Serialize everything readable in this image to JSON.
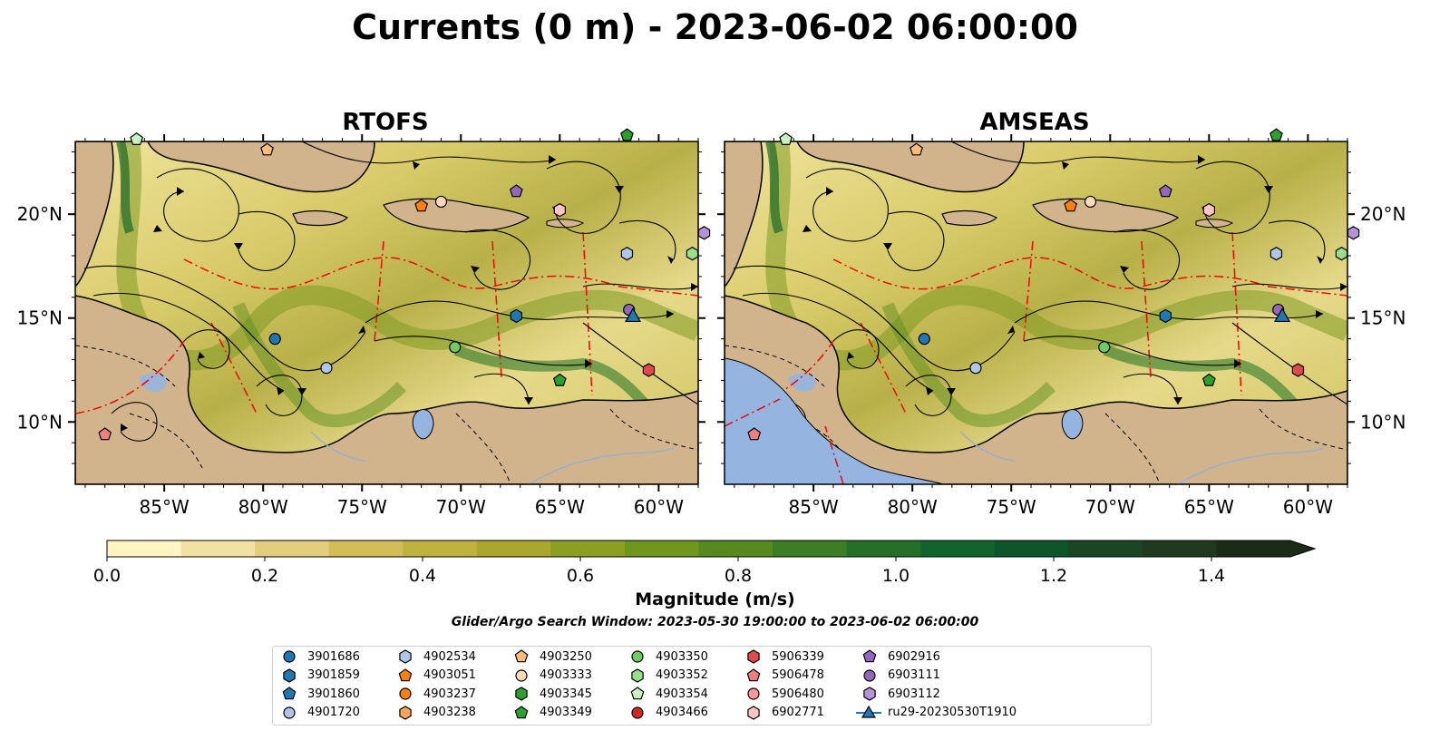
{
  "title": "Currents (0 m) - 2023-06-02 06:00:00",
  "panels": [
    {
      "title": "RTOFS"
    },
    {
      "title": "AMSEAS"
    }
  ],
  "axes": {
    "lon_ticks": [
      "85°W",
      "80°W",
      "75°W",
      "70°W",
      "65°W",
      "60°W"
    ],
    "lat_ticks": [
      "20°N",
      "15°N",
      "10°N"
    ],
    "lon_range": [
      -89.5,
      -58.0
    ],
    "lat_range": [
      7.0,
      23.5
    ]
  },
  "colorbar": {
    "label": "Magnitude (m/s)",
    "ticks": [
      "0.0",
      "0.2",
      "0.4",
      "0.6",
      "0.8",
      "1.0",
      "1.2",
      "1.4"
    ],
    "range": [
      0.0,
      1.5
    ],
    "extend": "max",
    "colors": [
      "#fdf6c3",
      "#f1e2a1",
      "#e2ce7c",
      "#d2bd57",
      "#c0b23f",
      "#a9a72e",
      "#8c9f22",
      "#6f961d",
      "#558a1f",
      "#3c7e24",
      "#237029",
      "#12632c",
      "#0d552b",
      "#1a4626",
      "#1f3a1f",
      "#1c2a18"
    ]
  },
  "search_window": "Glider/Argo Search Window: 2023-05-30 19:00:00 to 2023-06-02 06:00:00",
  "colors": {
    "land": "#d2b48c",
    "water_pacific_amseas": "#95b4e0",
    "eez_line": "#ff0000",
    "glider_track": "#1f77b4"
  },
  "legend": [
    {
      "label": "3901686",
      "marker": "circle",
      "color": "#1f77b4"
    },
    {
      "label": "3901859",
      "marker": "hexagon",
      "color": "#1f77b4"
    },
    {
      "label": "3901860",
      "marker": "pentagon",
      "color": "#1f77b4"
    },
    {
      "label": "4901720",
      "marker": "circle",
      "color": "#aec7e8"
    },
    {
      "label": "4902534",
      "marker": "hexagon",
      "color": "#aec7e8"
    },
    {
      "label": "4903051",
      "marker": "pentagon",
      "color": "#ff7f0e"
    },
    {
      "label": "4903237",
      "marker": "circle",
      "color": "#ff7f0e"
    },
    {
      "label": "4903238",
      "marker": "hexagon",
      "color": "#ffa65a"
    },
    {
      "label": "4903250",
      "marker": "pentagon",
      "color": "#ffbb78"
    },
    {
      "label": "4903333",
      "marker": "circle",
      "color": "#ffd9b3"
    },
    {
      "label": "4903345",
      "marker": "hexagon",
      "color": "#2ca02c"
    },
    {
      "label": "4903349",
      "marker": "pentagon",
      "color": "#2ca02c"
    },
    {
      "label": "4903350",
      "marker": "circle",
      "color": "#6ecb63"
    },
    {
      "label": "4903352",
      "marker": "hexagon",
      "color": "#98df8a"
    },
    {
      "label": "4903354",
      "marker": "pentagon",
      "color": "#c8f0c0"
    },
    {
      "label": "4903466",
      "marker": "circle",
      "color": "#d62728"
    },
    {
      "label": "5906339",
      "marker": "hexagon",
      "color": "#e04a4a"
    },
    {
      "label": "5906478",
      "marker": "pentagon",
      "color": "#f08080"
    },
    {
      "label": "5906480",
      "marker": "circle",
      "color": "#ff9896"
    },
    {
      "label": "6902771",
      "marker": "hexagon",
      "color": "#ffc4c4"
    },
    {
      "label": "6902916",
      "marker": "pentagon",
      "color": "#9467bd"
    },
    {
      "label": "6903111",
      "marker": "circle",
      "color": "#9467bd"
    },
    {
      "label": "6903112",
      "marker": "hexagon",
      "color": "#b592d9"
    },
    {
      "label": "ru29-20230530T1910",
      "marker": "triangle-line",
      "color": "#1f77b4"
    }
  ]
}
